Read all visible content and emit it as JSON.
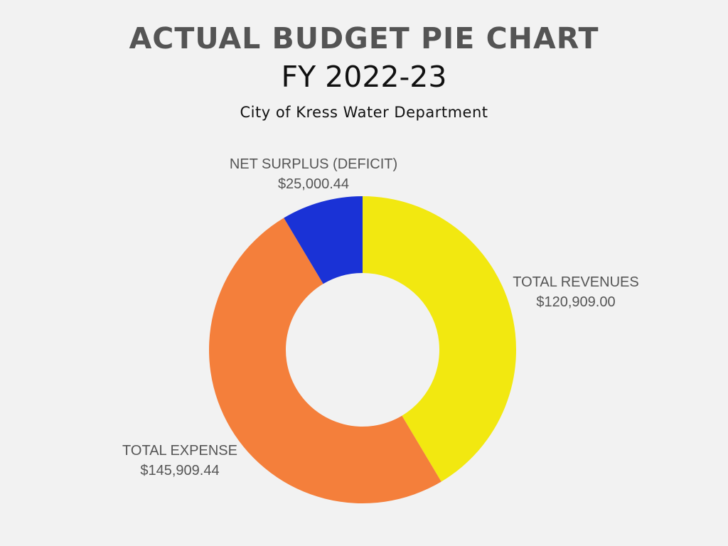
{
  "header": {
    "title": "ACTUAL BUDGET PIE CHART",
    "subtitle": "FY 2022-23",
    "caption": "City of Kress Water Department"
  },
  "chart_data": {
    "type": "pie",
    "title": "ACTUAL BUDGET PIE CHART",
    "subtitle": "FY 2022-23",
    "donut": true,
    "start_angle": "12 o'clock",
    "direction": "clockwise",
    "categories": [
      "TOTAL REVENUES",
      "TOTAL EXPENSE",
      "NET SURPLUS (DEFICIT)"
    ],
    "values": [
      120909.0,
      145909.44,
      25000.44
    ],
    "value_labels": [
      "$120,909.00",
      "$145,909.44",
      "$25,000.44"
    ],
    "colors": [
      "#f2e810",
      "#f47f3b",
      "#1a32d6"
    ],
    "legend": "none"
  }
}
